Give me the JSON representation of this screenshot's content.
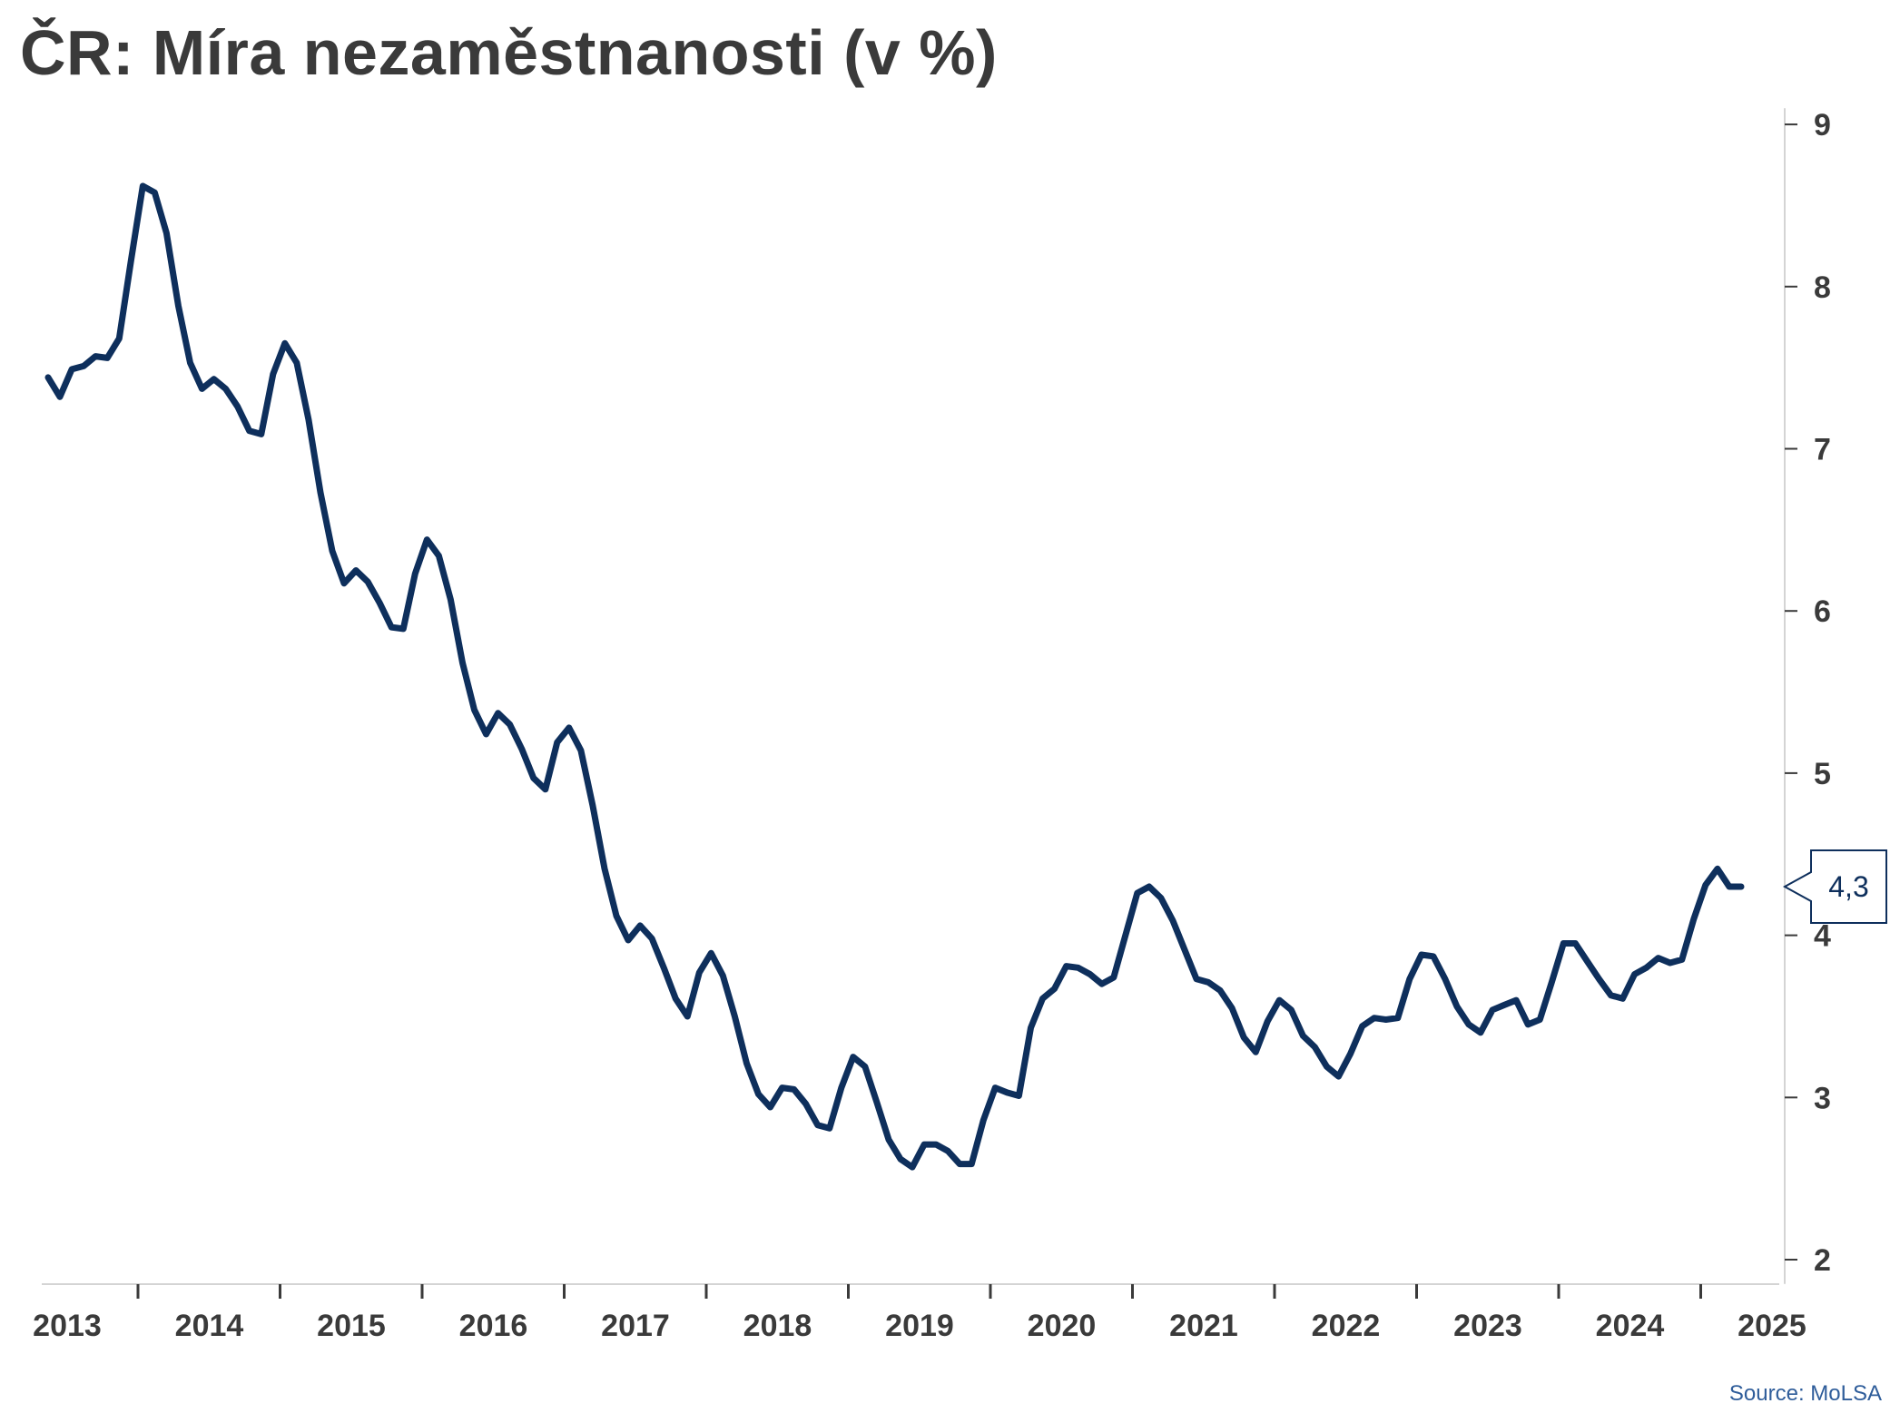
{
  "chart_data": {
    "type": "line",
    "title": "ČR: Míra nezaměstnanosti (v %)",
    "source": "Source: MoLSA",
    "xlabel": "",
    "ylabel": "",
    "x_tick_labels": [
      "2013",
      "2014",
      "2015",
      "2016",
      "2017",
      "2018",
      "2019",
      "2020",
      "2021",
      "2022",
      "2023",
      "2024",
      "2025"
    ],
    "y_ticks": [
      2,
      3,
      4,
      5,
      6,
      7,
      8,
      9
    ],
    "ylim": [
      1.85,
      9.1
    ],
    "y_axis_side": "right",
    "grid": false,
    "legend": "none",
    "line_color": "#0e2f5c",
    "last_value_label": "4,3",
    "series": [
      {
        "start": "2013-01",
        "frequency": "monthly",
        "values": [
          7.44,
          7.32,
          7.49,
          7.51,
          7.57,
          7.56,
          7.68,
          8.16,
          8.62,
          8.58,
          8.33,
          7.88,
          7.53,
          7.37,
          7.43,
          7.37,
          7.26,
          7.11,
          7.09,
          7.46,
          7.65,
          7.53,
          7.18,
          6.73,
          6.37,
          6.17,
          6.25,
          6.18,
          6.05,
          5.9,
          5.89,
          6.23,
          6.44,
          6.34,
          6.07,
          5.68,
          5.39,
          5.24,
          5.37,
          5.3,
          5.15,
          4.97,
          4.9,
          5.19,
          5.28,
          5.14,
          4.8,
          4.41,
          4.12,
          3.97,
          4.06,
          3.98,
          3.8,
          3.61,
          3.5,
          3.77,
          3.89,
          3.75,
          3.5,
          3.21,
          3.02,
          2.94,
          3.06,
          3.05,
          2.96,
          2.83,
          2.81,
          3.06,
          3.25,
          3.19,
          2.97,
          2.74,
          2.62,
          2.57,
          2.71,
          2.71,
          2.67,
          2.59,
          2.59,
          2.86,
          3.06,
          3.03,
          3.01,
          3.43,
          3.61,
          3.67,
          3.81,
          3.8,
          3.76,
          3.7,
          3.74,
          4.0,
          4.26,
          4.3,
          4.23,
          4.09,
          3.91,
          3.73,
          3.71,
          3.66,
          3.55,
          3.37,
          3.28,
          3.47,
          3.6,
          3.54,
          3.38,
          3.31,
          3.19,
          3.13,
          3.27,
          3.44,
          3.49,
          3.48,
          3.49,
          3.73,
          3.88,
          3.87,
          3.73,
          3.56,
          3.45,
          3.4,
          3.54,
          3.57,
          3.6,
          3.45,
          3.48,
          3.71,
          3.95,
          3.95,
          3.84,
          3.73,
          3.63,
          3.61,
          3.76,
          3.8,
          3.86,
          3.83,
          3.85,
          4.1,
          4.31,
          4.41,
          4.3,
          4.3
        ]
      }
    ]
  }
}
